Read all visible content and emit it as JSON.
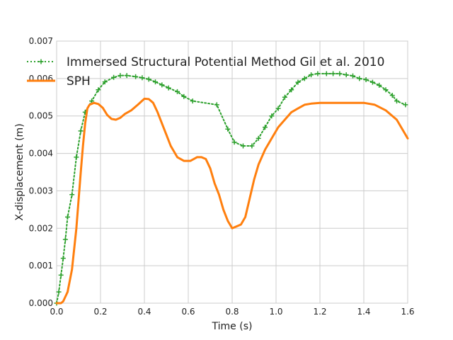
{
  "chart_data": {
    "type": "line",
    "xlabel": "Time (s)",
    "ylabel": "X-displacement (m)",
    "xlim": [
      0.0,
      1.6
    ],
    "ylim": [
      0.0,
      0.007
    ],
    "grid": true,
    "legend_position": "top-left",
    "x_ticks": [
      0.0,
      0.2,
      0.4,
      0.6,
      0.8,
      1.0,
      1.2,
      1.4,
      1.6
    ],
    "x_tick_labels": [
      "0.0",
      "0.2",
      "0.4",
      "0.6",
      "0.8",
      "1.0",
      "1.2",
      "1.4",
      "1.6"
    ],
    "y_ticks": [
      0.0,
      0.001,
      0.002,
      0.003,
      0.004,
      0.005,
      0.006,
      0.007
    ],
    "y_tick_labels": [
      "0.000",
      "0.001",
      "0.002",
      "0.003",
      "0.004",
      "0.005",
      "0.006",
      "0.007"
    ],
    "series": [
      {
        "name": "Immersed Structural Potential Method Gil et al. 2010",
        "color": "#2ca02c",
        "line_style": "dotted",
        "marker": "plus",
        "x": [
          0.0,
          0.01,
          0.02,
          0.03,
          0.04,
          0.05,
          0.07,
          0.09,
          0.11,
          0.13,
          0.16,
          0.19,
          0.22,
          0.26,
          0.29,
          0.32,
          0.36,
          0.39,
          0.42,
          0.45,
          0.48,
          0.51,
          0.55,
          0.58,
          0.62,
          0.73,
          0.78,
          0.81,
          0.85,
          0.89,
          0.92,
          0.95,
          0.98,
          1.01,
          1.04,
          1.07,
          1.1,
          1.13,
          1.16,
          1.19,
          1.23,
          1.26,
          1.29,
          1.32,
          1.35,
          1.38,
          1.41,
          1.44,
          1.47,
          1.5,
          1.53,
          1.55,
          1.59
        ],
        "y": [
          0.0,
          0.0003,
          0.00075,
          0.0012,
          0.0017,
          0.0023,
          0.0029,
          0.0039,
          0.0046,
          0.0051,
          0.0054,
          0.0057,
          0.00591,
          0.00603,
          0.00608,
          0.00608,
          0.00605,
          0.00602,
          0.00598,
          0.00591,
          0.00583,
          0.00575,
          0.00565,
          0.00552,
          0.0054,
          0.0053,
          0.00465,
          0.0043,
          0.0042,
          0.0042,
          0.0044,
          0.0047,
          0.005,
          0.0052,
          0.0055,
          0.0057,
          0.0059,
          0.006,
          0.0061,
          0.00613,
          0.00613,
          0.00613,
          0.00613,
          0.0061,
          0.00607,
          0.006,
          0.00597,
          0.0059,
          0.00582,
          0.0057,
          0.00555,
          0.0054,
          0.0053
        ]
      },
      {
        "name": "SPH",
        "color": "#ff7f0e",
        "line_style": "solid",
        "marker": "none",
        "x": [
          0.0,
          0.02,
          0.03,
          0.05,
          0.07,
          0.09,
          0.11,
          0.12,
          0.13,
          0.14,
          0.15,
          0.17,
          0.19,
          0.21,
          0.23,
          0.25,
          0.27,
          0.29,
          0.31,
          0.34,
          0.37,
          0.4,
          0.42,
          0.44,
          0.46,
          0.48,
          0.5,
          0.52,
          0.55,
          0.58,
          0.61,
          0.64,
          0.66,
          0.68,
          0.7,
          0.72,
          0.74,
          0.76,
          0.78,
          0.8,
          0.82,
          0.84,
          0.86,
          0.88,
          0.9,
          0.92,
          0.95,
          0.98,
          1.01,
          1.04,
          1.07,
          1.1,
          1.13,
          1.16,
          1.2,
          1.25,
          1.3,
          1.35,
          1.4,
          1.45,
          1.5,
          1.55,
          1.6
        ],
        "y": [
          0.0,
          0.0,
          5e-05,
          0.0003,
          0.0009,
          0.002,
          0.0035,
          0.0042,
          0.0048,
          0.0052,
          0.0053,
          0.00535,
          0.00532,
          0.00522,
          0.00503,
          0.00492,
          0.0049,
          0.00495,
          0.00505,
          0.00515,
          0.0053,
          0.00546,
          0.00545,
          0.00535,
          0.0051,
          0.0048,
          0.0045,
          0.0042,
          0.0039,
          0.0038,
          0.0038,
          0.0039,
          0.0039,
          0.00385,
          0.0036,
          0.0032,
          0.0029,
          0.0025,
          0.0022,
          0.002,
          0.00205,
          0.0021,
          0.0023,
          0.0028,
          0.0033,
          0.0037,
          0.0041,
          0.0044,
          0.0047,
          0.0049,
          0.0051,
          0.0052,
          0.0053,
          0.00533,
          0.00535,
          0.00535,
          0.00535,
          0.00535,
          0.00535,
          0.0053,
          0.00515,
          0.0049,
          0.0044
        ]
      }
    ]
  }
}
